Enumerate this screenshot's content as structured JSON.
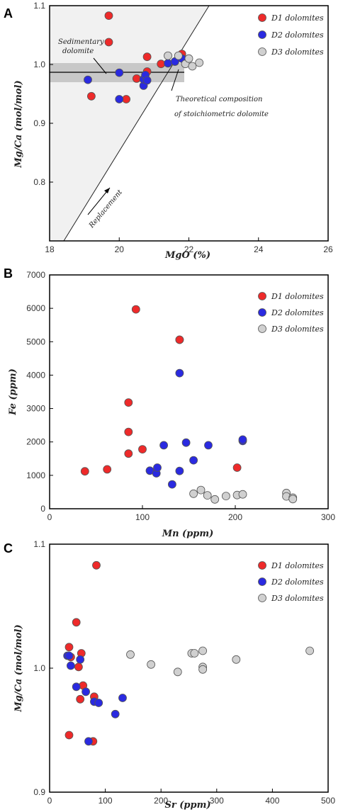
{
  "chart_data": [
    {
      "type": "scatter",
      "panel": "A",
      "xlabel": "MgO (%)",
      "ylabel": "Mg/Ca (mol/mol)",
      "xlim": [
        18,
        26
      ],
      "ylim": [
        0.7,
        1.1
      ],
      "xticks": [
        "18",
        "20",
        "22",
        "24",
        "26"
      ],
      "yticks": [
        "0.8",
        "0.9",
        "1.0",
        "1.1"
      ],
      "legend_position": "top-right",
      "annotations": [
        "Sedimentary dolomite",
        "Theoretical composition of stoichiometric dolomite",
        "Replacement"
      ],
      "series": [
        {
          "name": "D1 dolomites",
          "color": "#ee2a2a",
          "x": [
            19.7,
            19.7,
            19.2,
            20.2,
            20.5,
            20.8,
            20.8,
            21.2,
            21.8,
            21.6
          ],
          "y": [
            1.083,
            1.038,
            0.946,
            0.941,
            0.976,
            0.988,
            1.013,
            1.001,
            1.018,
            1.005
          ]
        },
        {
          "name": "D2 dolomites",
          "color": "#2a2ae0",
          "x": [
            19.1,
            20.0,
            20.0,
            20.7,
            20.7,
            20.75,
            20.8,
            21.4,
            21.6,
            21.8
          ],
          "y": [
            0.974,
            0.986,
            0.941,
            0.964,
            0.975,
            0.982,
            0.973,
            1.002,
            1.005,
            1.01
          ]
        },
        {
          "name": "D3 dolomites",
          "color": "#d0d0d0",
          "x": [
            21.4,
            21.7,
            21.9,
            22.0,
            22.1,
            22.3
          ],
          "y": [
            1.015,
            1.015,
            1.001,
            1.01,
            0.997,
            1.003
          ]
        }
      ]
    },
    {
      "type": "scatter",
      "panel": "B",
      "xlabel": "Mn (ppm)",
      "ylabel": "Fe (ppm)",
      "xlim": [
        0,
        300
      ],
      "ylim": [
        0,
        7000
      ],
      "xticks": [
        "0",
        "100",
        "200",
        "300"
      ],
      "yticks": [
        "0",
        "1000",
        "2000",
        "3000",
        "4000",
        "5000",
        "6000",
        "7000"
      ],
      "legend_position": "top-right",
      "series": [
        {
          "name": "D1 dolomites",
          "color": "#ee2a2a",
          "x": [
            38,
            62,
            85,
            85,
            85,
            100,
            93,
            140,
            140,
            202
          ],
          "y": [
            1120,
            1180,
            1650,
            2300,
            3180,
            1780,
            5970,
            5060,
            5060,
            1230
          ]
        },
        {
          "name": "D2 dolomites",
          "color": "#2a2ae0",
          "x": [
            108,
            115,
            116,
            123,
            132,
            140,
            140,
            147,
            155,
            171,
            208,
            208
          ],
          "y": [
            1140,
            1060,
            1230,
            1900,
            730,
            1130,
            4060,
            1980,
            1450,
            1900,
            2030,
            2070
          ]
        },
        {
          "name": "D3 dolomites",
          "color": "#d0d0d0",
          "x": [
            155,
            163,
            170,
            178,
            190,
            202,
            208,
            255,
            255,
            262,
            262
          ],
          "y": [
            450,
            560,
            400,
            280,
            380,
            410,
            430,
            470,
            370,
            330,
            290
          ]
        }
      ]
    },
    {
      "type": "scatter",
      "panel": "C",
      "xlabel": "Sr (ppm)",
      "ylabel": "Mg/Ca (mol/mol)",
      "xlim": [
        0,
        500
      ],
      "ylim": [
        0.9,
        1.1
      ],
      "xticks": [
        "0",
        "100",
        "200",
        "300",
        "400",
        "500"
      ],
      "yticks": [
        "0.9",
        "1.0",
        "1.1"
      ],
      "legend_position": "top-right",
      "series": [
        {
          "name": "D1 dolomites",
          "color": "#ee2a2a",
          "x": [
            35,
            38,
            48,
            52,
            55,
            57,
            60,
            80,
            84,
            35,
            78
          ],
          "y": [
            1.017,
            1.009,
            1.037,
            1.001,
            0.975,
            1.012,
            0.986,
            0.977,
            1.083,
            0.946,
            0.941
          ]
        },
        {
          "name": "D2 dolomites",
          "color": "#2a2ae0",
          "x": [
            32,
            35,
            38,
            48,
            55,
            65,
            70,
            80,
            88,
            118,
            131
          ],
          "y": [
            1.01,
            1.01,
            1.002,
            0.985,
            1.007,
            0.981,
            0.941,
            0.973,
            0.972,
            0.963,
            0.976
          ]
        },
        {
          "name": "D3 dolomites",
          "color": "#d0d0d0",
          "x": [
            145,
            182,
            230,
            255,
            260,
            275,
            275,
            275,
            335,
            467
          ],
          "y": [
            1.011,
            1.003,
            0.997,
            1.012,
            1.012,
            1.014,
            1.001,
            0.999,
            1.007,
            1.014
          ]
        }
      ]
    }
  ]
}
